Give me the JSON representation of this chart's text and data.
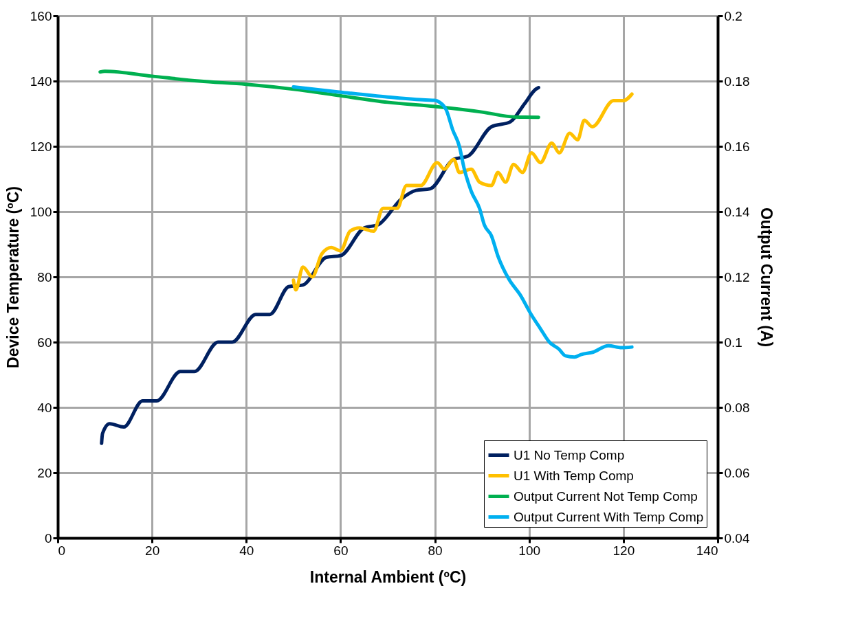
{
  "chart_data": {
    "type": "line",
    "xlabel": "Internal Ambient (ºC)",
    "ylabel": "Device Temperature (ºC)",
    "y2label": "Output Current (A)",
    "xlim": [
      0,
      140
    ],
    "xticks": [
      0,
      20,
      40,
      60,
      80,
      100,
      120,
      140
    ],
    "ylim": [
      0,
      160
    ],
    "yticks": [
      0,
      20,
      40,
      60,
      80,
      100,
      120,
      140,
      160
    ],
    "y2lim": [
      0.04,
      0.2
    ],
    "y2ticks": [
      0.04,
      0.06,
      0.08,
      0.1,
      0.12,
      0.14,
      0.16,
      0.18,
      0.2
    ],
    "grid": true,
    "legend": "bottom right",
    "series": [
      {
        "name": "U1 No Temp Comp",
        "color": "#002060",
        "x": [
          9.3,
          9.5,
          11,
          14,
          18,
          21,
          26,
          29,
          34,
          37,
          42,
          45,
          49,
          52,
          57,
          60,
          65,
          68,
          73,
          76,
          79,
          84,
          87,
          92,
          96,
          99,
          101.4,
          102
        ],
        "values": [
          29,
          32,
          35,
          34,
          42,
          42,
          51,
          51,
          60,
          60,
          68.5,
          68.5,
          77,
          77.5,
          86,
          86.5,
          95,
          96,
          104,
          106.5,
          107,
          116,
          117,
          126,
          127.5,
          133,
          137.5,
          138
        ]
      },
      {
        "name": "U1 With Temp Comp",
        "color": "#ffc000",
        "x": [
          50,
          50.5,
          52,
          54,
          56,
          58,
          60,
          62,
          64,
          67,
          69,
          72,
          74,
          77,
          80.5,
          82,
          84,
          85.2,
          87.7,
          89.5,
          92,
          93.4,
          95,
          96.7,
          98.6,
          100.5,
          102.4,
          104.8,
          106.4,
          108.6,
          110.3,
          111.7,
          113.4,
          117.9,
          120,
          121.8
        ],
        "values": [
          79,
          76,
          83,
          80,
          87,
          89,
          88,
          94,
          95,
          94,
          101,
          101,
          108,
          108,
          115,
          113,
          116,
          112,
          113,
          109,
          108,
          112,
          109,
          114.5,
          112,
          118,
          115,
          121,
          118,
          124,
          122,
          128,
          126,
          134,
          134,
          136
        ]
      },
      {
        "name": "Output Current Not Temp Comp",
        "color": "#00b050",
        "axis": "y2",
        "x": [
          9,
          10,
          20,
          30,
          40,
          50,
          60,
          70,
          80,
          90,
          97,
          102
        ],
        "values": [
          0.1828,
          0.183,
          0.1815,
          0.18,
          0.179,
          0.1775,
          0.1755,
          0.1735,
          0.1722,
          0.1705,
          0.169,
          0.1689
        ]
      },
      {
        "name": "Output Current With Temp Comp",
        "color": "#00b0f0",
        "axis": "y2",
        "x": [
          50,
          60,
          70,
          78,
          80,
          81,
          82.4,
          83.8,
          85.2,
          86.2,
          87.7,
          89.5,
          90.5,
          92,
          93.4,
          95.7,
          98.1,
          100.5,
          102.4,
          104.3,
          106.3,
          107.7,
          109.6,
          111,
          113.5,
          116.8,
          119.6,
          121.8
        ],
        "values": [
          0.1782,
          0.1766,
          0.1751,
          0.1742,
          0.1741,
          0.1735,
          0.1712,
          0.165,
          0.16,
          0.1533,
          0.1463,
          0.1409,
          0.1359,
          0.1326,
          0.1263,
          0.1193,
          0.1145,
          0.1083,
          0.1041,
          0.1,
          0.0979,
          0.0958,
          0.0954,
          0.0962,
          0.0969,
          0.0989,
          0.0983,
          0.0985
        ]
      }
    ]
  }
}
